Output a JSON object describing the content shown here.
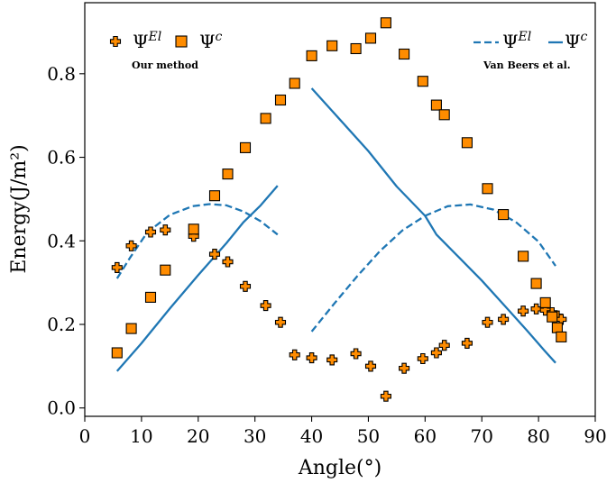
{
  "chart_data": {
    "type": "scatter",
    "xlabel": "Angle(°)",
    "ylabel": "Energy(J/m²)",
    "xlim": [
      0,
      90
    ],
    "ylim": [
      -0.02,
      0.97
    ],
    "xticks": [
      0,
      10,
      20,
      30,
      40,
      50,
      60,
      70,
      80,
      90
    ],
    "yticks": [
      0.0,
      0.2,
      0.4,
      0.6,
      0.8
    ],
    "grid": false,
    "colors": {
      "marker_fill": "#ff8c00",
      "marker_edge": "#000000",
      "line": "#1f77b4"
    },
    "legends": [
      {
        "placement": "top-left",
        "note": "Our method",
        "entries": [
          {
            "base": "Ψ",
            "sup": "El",
            "marker": "plus"
          },
          {
            "base": "Ψ",
            "sup": "c",
            "marker": "square"
          }
        ]
      },
      {
        "placement": "top-right",
        "note": "Van Beers et al.",
        "entries": [
          {
            "base": "Ψ",
            "sup": "El",
            "marker": "dashed-line"
          },
          {
            "base": "Ψ",
            "sup": "c",
            "marker": "solid-line"
          }
        ]
      }
    ],
    "series": [
      {
        "legend": "Our method Ψ^El",
        "style": "plus-marker",
        "points": [
          [
            5.7,
            0.336
          ],
          [
            8.2,
            0.388
          ],
          [
            11.6,
            0.421
          ],
          [
            14.2,
            0.426
          ],
          [
            19.2,
            0.411
          ],
          [
            22.9,
            0.368
          ],
          [
            25.2,
            0.35
          ],
          [
            28.3,
            0.291
          ],
          [
            31.9,
            0.245
          ],
          [
            34.5,
            0.205
          ],
          [
            37.0,
            0.127
          ],
          [
            40.0,
            0.12
          ],
          [
            43.6,
            0.115
          ],
          [
            47.8,
            0.13
          ],
          [
            50.4,
            0.1
          ],
          [
            53.1,
            0.028
          ],
          [
            56.3,
            0.095
          ],
          [
            59.6,
            0.118
          ],
          [
            62.0,
            0.132
          ],
          [
            63.4,
            0.15
          ],
          [
            67.4,
            0.155
          ],
          [
            71.0,
            0.205
          ],
          [
            73.8,
            0.212
          ],
          [
            77.3,
            0.232
          ],
          [
            79.6,
            0.237
          ],
          [
            81.2,
            0.234
          ],
          [
            82.4,
            0.228
          ],
          [
            83.3,
            0.22
          ],
          [
            84.0,
            0.212
          ]
        ]
      },
      {
        "legend": "Our method Ψ^c",
        "style": "square-marker",
        "points": [
          [
            5.7,
            0.132
          ],
          [
            8.2,
            0.19
          ],
          [
            11.6,
            0.265
          ],
          [
            14.2,
            0.33
          ],
          [
            19.2,
            0.428
          ],
          [
            22.9,
            0.508
          ],
          [
            25.2,
            0.56
          ],
          [
            28.3,
            0.623
          ],
          [
            31.9,
            0.693
          ],
          [
            34.5,
            0.737
          ],
          [
            37.0,
            0.777
          ],
          [
            40.0,
            0.843
          ],
          [
            43.6,
            0.867
          ],
          [
            47.8,
            0.86
          ],
          [
            50.4,
            0.885
          ],
          [
            53.1,
            0.922
          ],
          [
            56.3,
            0.847
          ],
          [
            59.6,
            0.782
          ],
          [
            62.0,
            0.725
          ],
          [
            63.4,
            0.702
          ],
          [
            67.4,
            0.635
          ],
          [
            71.0,
            0.525
          ],
          [
            73.8,
            0.463
          ],
          [
            77.3,
            0.363
          ],
          [
            79.6,
            0.298
          ],
          [
            81.2,
            0.252
          ],
          [
            82.4,
            0.218
          ],
          [
            83.3,
            0.192
          ],
          [
            84.0,
            0.17
          ]
        ]
      },
      {
        "legend": "Van Beers et al. Ψ^El",
        "style": "dashed-line",
        "points": [
          [
            5.7,
            0.31
          ],
          [
            8,
            0.36
          ],
          [
            11,
            0.42
          ],
          [
            15,
            0.462
          ],
          [
            19,
            0.483
          ],
          [
            22,
            0.488
          ],
          [
            25,
            0.485
          ],
          [
            28,
            0.47
          ],
          [
            31,
            0.447
          ],
          [
            34,
            0.415
          ]
        ]
      },
      {
        "legend": "Van Beers et al. Ψ^El",
        "style": "dashed-line",
        "points": [
          [
            40,
            0.183
          ],
          [
            44,
            0.25
          ],
          [
            48,
            0.315
          ],
          [
            52,
            0.375
          ],
          [
            56,
            0.425
          ],
          [
            60,
            0.46
          ],
          [
            64,
            0.483
          ],
          [
            68,
            0.487
          ],
          [
            72,
            0.475
          ],
          [
            76,
            0.445
          ],
          [
            80,
            0.398
          ],
          [
            83,
            0.34
          ]
        ]
      },
      {
        "legend": "Van Beers et al. Ψ^c",
        "style": "solid-line",
        "points": [
          [
            5.7,
            0.088
          ],
          [
            10,
            0.155
          ],
          [
            15,
            0.238
          ],
          [
            20,
            0.318
          ],
          [
            25,
            0.395
          ],
          [
            28,
            0.445
          ],
          [
            31,
            0.485
          ],
          [
            34,
            0.532
          ]
        ]
      },
      {
        "legend": "Van Beers et al. Ψ^c",
        "style": "solid-line",
        "points": [
          [
            40,
            0.765
          ],
          [
            45,
            0.69
          ],
          [
            50,
            0.615
          ],
          [
            55,
            0.53
          ],
          [
            60,
            0.46
          ],
          [
            62,
            0.415
          ],
          [
            66,
            0.36
          ],
          [
            70,
            0.305
          ],
          [
            74,
            0.245
          ],
          [
            78,
            0.185
          ],
          [
            81,
            0.138
          ],
          [
            83,
            0.108
          ]
        ]
      }
    ]
  }
}
